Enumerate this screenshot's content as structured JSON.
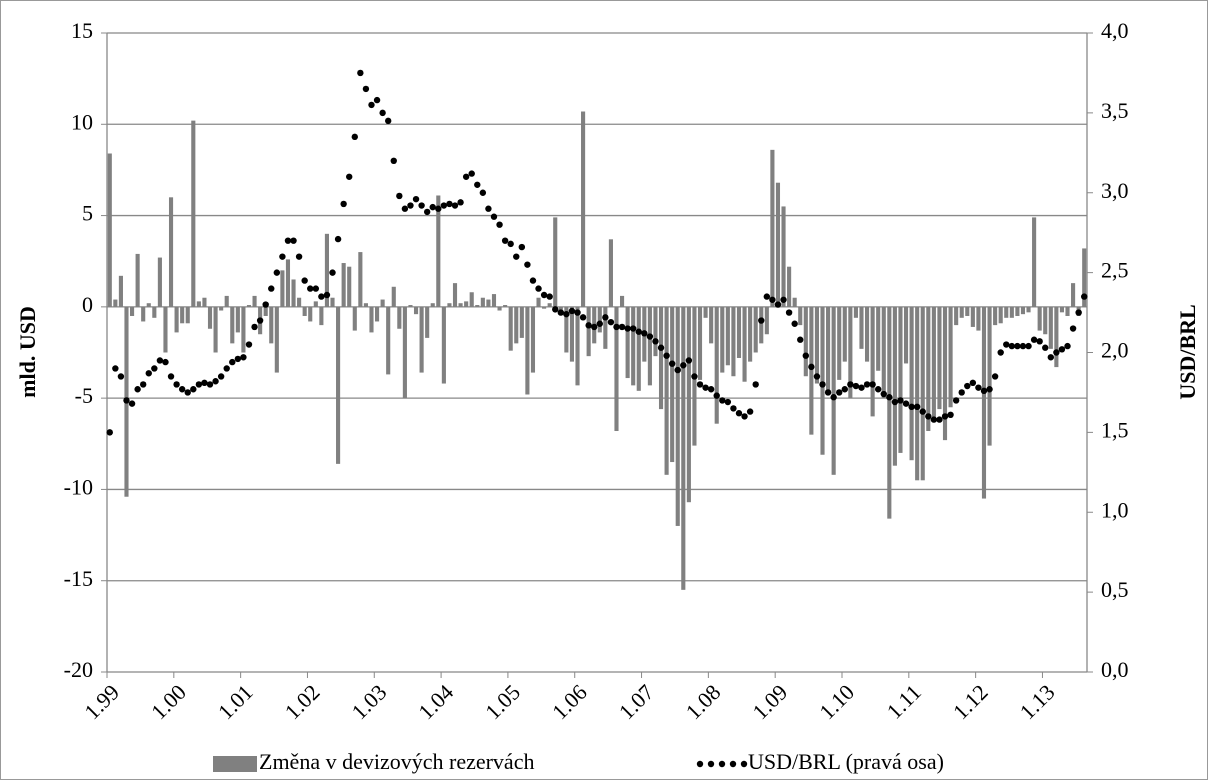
{
  "chart_data": {
    "type": "bar-line",
    "y_label": "mld. USD",
    "y2_label": "USD/BRL",
    "categories": [
      "1.99",
      null,
      null,
      null,
      null,
      null,
      null,
      null,
      null,
      null,
      null,
      null,
      "1.00",
      null,
      null,
      null,
      null,
      null,
      null,
      null,
      null,
      null,
      null,
      null,
      "1.01",
      null,
      null,
      null,
      null,
      null,
      null,
      null,
      null,
      null,
      null,
      null,
      "1.02",
      null,
      null,
      null,
      null,
      null,
      null,
      null,
      null,
      null,
      null,
      null,
      "1.03",
      null,
      null,
      null,
      null,
      null,
      null,
      null,
      null,
      null,
      null,
      null,
      "1.04",
      null,
      null,
      null,
      null,
      null,
      null,
      null,
      null,
      null,
      null,
      null,
      "1.05",
      null,
      null,
      null,
      null,
      null,
      null,
      null,
      null,
      null,
      null,
      null,
      "1.06",
      null,
      null,
      null,
      null,
      null,
      null,
      null,
      null,
      null,
      null,
      null,
      "1.07",
      null,
      null,
      null,
      null,
      null,
      null,
      null,
      null,
      null,
      null,
      null,
      "1.08",
      null,
      null,
      null,
      null,
      null,
      null,
      null,
      null,
      null,
      null,
      null,
      "1.09",
      null,
      null,
      null,
      null,
      null,
      null,
      null,
      null,
      null,
      null,
      null,
      "1.10",
      null,
      null,
      null,
      null,
      null,
      null,
      null,
      null,
      null,
      null,
      null,
      "1.11",
      null,
      null,
      null,
      null,
      null,
      null,
      null,
      null,
      null,
      null,
      null,
      "1.12",
      null,
      null,
      null,
      null,
      null,
      null,
      null,
      null,
      null,
      null,
      null,
      "1.13",
      null,
      null,
      null,
      null,
      null,
      null,
      null
    ],
    "series": [
      {
        "name": "Změna v devizových rezervách",
        "type": "bar",
        "color": "#808080",
        "values": [
          8.4,
          0.4,
          1.7,
          -10.4,
          -0.5,
          2.9,
          -0.8,
          0.2,
          -0.6,
          2.7,
          -2.5,
          6.0,
          -1.4,
          -0.9,
          -0.9,
          10.2,
          0.3,
          0.5,
          -1.2,
          -2.5,
          -0.2,
          0.6,
          -2.0,
          -1.4,
          -2.5,
          0.1,
          0.6,
          -1.5,
          -0.5,
          -2.0,
          -3.6,
          2.0,
          2.6,
          1.5,
          0.5,
          -0.5,
          -0.8,
          0.3,
          -1.0,
          4.0,
          0.5,
          -8.6,
          2.4,
          2.2,
          -1.3,
          3.0,
          0.2,
          -1.4,
          -0.8,
          0.4,
          -3.7,
          1.1,
          -1.2,
          -5.0,
          0.1,
          -0.4,
          -3.6,
          -1.7,
          0.2,
          6.1,
          -4.2,
          0.2,
          1.3,
          0.2,
          0.3,
          0.8,
          0.1,
          0.5,
          0.4,
          0.7,
          -0.2,
          0.1,
          -2.4,
          -2.0,
          -1.7,
          -4.8,
          -3.6,
          0.5,
          -0.1,
          0.2,
          4.9,
          -0.4,
          -2.5,
          -3.0,
          -4.3,
          10.7,
          -2.7,
          -2.0,
          -1.4,
          -2.3,
          3.7,
          -6.8,
          0.6,
          -3.9,
          -4.3,
          -4.6,
          -3.0,
          -4.3,
          -2.7,
          -5.6,
          -9.2,
          -8.5,
          -12.0,
          -15.5,
          -10.7,
          -7.6,
          -4.0,
          -0.6,
          -2.0,
          -6.4,
          -3.6,
          -3.2,
          -3.8,
          -2.8,
          -4.1,
          -3.0,
          -2.5,
          -2.0,
          -1.5,
          8.6,
          6.8,
          5.5,
          2.2,
          0.5,
          -1.0,
          -3.8,
          -7.0,
          -4.2,
          -8.1,
          -4.8,
          -9.2,
          -4.0,
          -3.0,
          -5.0,
          -0.6,
          -2.3,
          -3.0,
          -6.0,
          -3.5,
          -5.0,
          -11.6,
          -8.7,
          -8.0,
          -3.1,
          -8.4,
          -9.5,
          -9.5,
          -6.8,
          -6.2,
          -5.6,
          -7.3,
          -5.5,
          -1.0,
          -0.6,
          -0.5,
          -1.1,
          -1.3,
          -10.5,
          -7.6,
          -1.0,
          -0.9,
          -0.6,
          -0.6,
          -0.5,
          -0.4,
          -0.3,
          4.9,
          -1.3,
          -1.5,
          -2.3,
          -3.3,
          -0.3,
          -0.5,
          1.3,
          -0.5,
          3.2
        ]
      },
      {
        "name": "USD/BRL (pravá osa)",
        "type": "dotted-line",
        "axis": "y2",
        "color": "#000000",
        "values": [
          1.5,
          1.9,
          1.85,
          1.7,
          1.68,
          1.77,
          1.8,
          1.87,
          1.9,
          1.95,
          1.94,
          1.85,
          1.8,
          1.77,
          1.75,
          1.77,
          1.8,
          1.81,
          1.8,
          1.82,
          1.85,
          1.9,
          1.94,
          1.96,
          1.97,
          2.05,
          2.16,
          2.2,
          2.3,
          2.4,
          2.5,
          2.6,
          2.7,
          2.7,
          2.6,
          2.45,
          2.4,
          2.4,
          2.35,
          2.36,
          2.5,
          2.71,
          2.93,
          3.1,
          3.35,
          3.75,
          3.65,
          3.55,
          3.58,
          3.5,
          3.45,
          3.2,
          2.98,
          2.9,
          2.92,
          2.96,
          2.92,
          2.88,
          2.91,
          2.9,
          2.92,
          2.93,
          2.92,
          2.94,
          3.1,
          3.12,
          3.05,
          3.0,
          2.9,
          2.85,
          2.8,
          2.7,
          2.68,
          2.6,
          2.66,
          2.55,
          2.45,
          2.4,
          2.36,
          2.35,
          2.27,
          2.25,
          2.24,
          2.26,
          2.25,
          2.22,
          2.17,
          2.16,
          2.18,
          2.22,
          2.19,
          2.16,
          2.16,
          2.15,
          2.15,
          2.13,
          2.12,
          2.1,
          2.07,
          2.03,
          1.98,
          1.93,
          1.89,
          1.92,
          1.95,
          1.85,
          1.8,
          1.78,
          1.77,
          1.73,
          1.7,
          1.69,
          1.65,
          1.62,
          1.6,
          1.63,
          1.8,
          2.2,
          2.35,
          2.33,
          2.3,
          2.33,
          2.25,
          2.18,
          2.08,
          1.98,
          1.91,
          1.85,
          1.8,
          1.75,
          1.72,
          1.75,
          1.77,
          1.8,
          1.79,
          1.78,
          1.8,
          1.8,
          1.77,
          1.74,
          1.72,
          1.69,
          1.7,
          1.68,
          1.66,
          1.66,
          1.63,
          1.6,
          1.58,
          1.58,
          1.6,
          1.61,
          1.7,
          1.75,
          1.79,
          1.81,
          1.78,
          1.76,
          1.77,
          1.85,
          2.0,
          2.05,
          2.04,
          2.04,
          2.04,
          2.04,
          2.08,
          2.07,
          2.03,
          1.97,
          2.0,
          2.02,
          2.04,
          2.15,
          2.25,
          2.35
        ]
      }
    ],
    "ylim": [
      -20,
      15
    ],
    "yticks": [
      -20,
      -15,
      -10,
      -5,
      0,
      5,
      10,
      15
    ],
    "y2lim": [
      0,
      4
    ],
    "y2ticks": [
      {
        "value": 0,
        "label": "0,0"
      },
      {
        "value": 0.5,
        "label": "0,5"
      },
      {
        "value": 1,
        "label": "1,0"
      },
      {
        "value": 1.5,
        "label": "1,5"
      },
      {
        "value": 2,
        "label": "2,0"
      },
      {
        "value": 2.5,
        "label": "2,5"
      },
      {
        "value": 3,
        "label": "3,0"
      },
      {
        "value": 3.5,
        "label": "3,5"
      },
      {
        "value": 4,
        "label": "4,0"
      }
    ],
    "grid": true,
    "legend": "bottom"
  }
}
